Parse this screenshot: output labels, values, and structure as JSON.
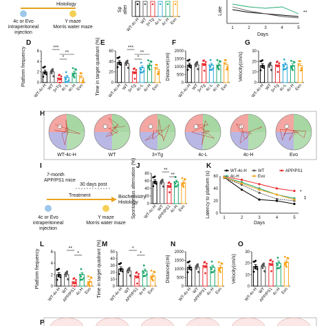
{
  "colors": {
    "wt4ch": "#000000",
    "wt": "#555555",
    "tg": "#e8282b",
    "c4l": "#2da8d8",
    "c4h": "#1fa86e",
    "evo": "#f7a21b",
    "app": "#e8282b",
    "arena_red": "#f3a6a2",
    "arena_green": "#a7d8a3",
    "arena_blue": "#b9b7e4",
    "timeline": "#e8a21b",
    "dot_blue": "#9ec7ea",
    "dot_yellow": "#f6cf55"
  },
  "panel_labels": {
    "D": "D",
    "E": "E",
    "F": "F",
    "G": "G",
    "H": "H",
    "I": "I",
    "J": "J",
    "K": "K",
    "L": "L",
    "M": "M",
    "N": "N",
    "O": "O",
    "P": "P"
  },
  "top": {
    "histology": "Histology",
    "injection_l1": "4c or Evo",
    "injection_l2": "intraperitoneal",
    "injection_l3": "injection",
    "maze": "Y maze",
    "mwm": "Morris water maze",
    "b_ylabel": "Sp",
    "b_ylabel2": "alter",
    "b_groups": [
      "WT-4c-H",
      "WT",
      "3×Tg",
      "4c-L",
      "4c-H",
      "Evo"
    ],
    "c_ylabel": "Late",
    "c_xlabel": "Days",
    "c_days": [
      "1",
      "2",
      "3",
      "4",
      "5"
    ],
    "c_sig": "**"
  },
  "chart_D": {
    "type": "bar",
    "ylabel": "Platform frequency",
    "categories": [
      "WT-4c-H",
      "WT",
      "3×Tg",
      "4c-L",
      "4c-H",
      "Evo"
    ],
    "values": [
      2.0,
      2.0,
      0.5,
      1.0,
      1.8,
      0.9
    ],
    "ylim": [
      0,
      6
    ],
    "yticks": [
      "0",
      "2",
      "4",
      "6"
    ],
    "sig": [
      {
        "from": 1,
        "to": 2,
        "label": "***"
      },
      {
        "from": 2,
        "to": 4,
        "label": "**"
      },
      {
        "from": 2,
        "to": 3,
        "label": "*"
      }
    ]
  },
  "chart_E": {
    "type": "bar",
    "ylabel": "Time in target quadrant (%)",
    "categories": [
      "WT-4c-H",
      "WT",
      "3×Tg",
      "4c-L",
      "4c-H",
      "Evo"
    ],
    "values": [
      38,
      36,
      17,
      28,
      33,
      25
    ],
    "ylim": [
      0,
      60
    ],
    "yticks": [
      "0",
      "20",
      "40",
      "60"
    ],
    "sig": [
      {
        "from": 1,
        "to": 2,
        "label": "***"
      },
      {
        "from": 2,
        "to": 4,
        "label": "**"
      },
      {
        "from": 2,
        "to": 3,
        "label": "*"
      }
    ]
  },
  "chart_F": {
    "type": "bar",
    "ylabel": "Distance(cm)",
    "categories": [
      "WT-4c-H",
      "WT",
      "3×Tg",
      "4c-L",
      "4c-H",
      "Evo"
    ],
    "values": [
      1100,
      1120,
      1080,
      1100,
      1110,
      1130
    ],
    "ylim": [
      0,
      2000
    ],
    "yticks": [
      "0",
      "500",
      "1000",
      "1500",
      "2000"
    ]
  },
  "chart_G": {
    "type": "bar",
    "ylabel": "Velocity(cm/s)",
    "categories": [
      "WT-4c-H",
      "WT",
      "3×Tg",
      "4c-L",
      "4c-H",
      "Evo"
    ],
    "values": [
      16,
      16,
      15,
      17,
      16,
      16
    ],
    "ylim": [
      0,
      30
    ],
    "yticks": [
      "0",
      "10",
      "20",
      "30"
    ]
  },
  "arenas_H": [
    "WT-4c-H",
    "WT",
    "3×Tg",
    "4c-L",
    "4c-H",
    "Evo"
  ],
  "panel_I": {
    "title_l1": "7-month",
    "title_l2": "APP/PS1 mice",
    "post": "30 days post",
    "treatment": "Treatment",
    "bio": "Biochemistry",
    "histology": "Histology",
    "injection_l1": "4c or Evo",
    "injection_l2": "intraperitoneal",
    "injection_l3": "injection",
    "maze": "Y maze",
    "mwm": "Morris water maze"
  },
  "chart_J": {
    "type": "bar",
    "ylabel": "Spontaneous alternation (%)",
    "categories": [
      "WT-4c-H",
      "WT",
      "APP/PS1",
      "4c-H",
      "Evo"
    ],
    "values": [
      58,
      56,
      43,
      57,
      55
    ],
    "ylim": [
      0,
      80
    ],
    "yticks": [
      "0",
      "20",
      "40",
      "60",
      "80"
    ],
    "sig": [
      {
        "from": 1,
        "to": 2,
        "label": "**"
      },
      {
        "from": 2,
        "to": 3,
        "label": "**"
      }
    ]
  },
  "chart_K": {
    "type": "line",
    "ylabel": "Latency to platform (s)",
    "xlabel": "Days",
    "x": [
      "1",
      "2",
      "3",
      "4",
      "5"
    ],
    "ylim": [
      0,
      60
    ],
    "yticks": [
      "0",
      "20",
      "40",
      "60"
    ],
    "series": [
      {
        "name": "WT-4c-H",
        "values": [
          58,
          38,
          22,
          20,
          15
        ]
      },
      {
        "name": "WT",
        "values": [
          57,
          46,
          33,
          23,
          20
        ]
      },
      {
        "name": "APP/PS1",
        "values": [
          59,
          54,
          47,
          40,
          36
        ]
      },
      {
        "name": "4c-H",
        "values": [
          58,
          50,
          40,
          30,
          24
        ]
      },
      {
        "name": "Evo",
        "values": [
          58,
          48,
          38,
          30,
          22
        ]
      }
    ],
    "sig": [
      "*",
      "**"
    ]
  },
  "chart_L": {
    "type": "bar",
    "ylabel": "Platform frequency",
    "categories": [
      "WT-4c-H",
      "WT",
      "APP/PS1",
      "4c-H",
      "Evo"
    ],
    "values": [
      2.0,
      2.0,
      0.4,
      2.0,
      0.8
    ],
    "ylim": [
      0,
      6
    ],
    "yticks": [
      "0",
      "2",
      "4",
      "6"
    ],
    "sig": [
      {
        "from": 1,
        "to": 2,
        "label": "**"
      },
      {
        "from": 2,
        "to": 3,
        "label": "*"
      }
    ]
  },
  "chart_M": {
    "type": "bar",
    "ylabel": "Time in target quadrant (%)",
    "categories": [
      "WT-4c-H",
      "WT",
      "APP/PS1",
      "4c-H",
      "Evo"
    ],
    "values": [
      25,
      22,
      12,
      22,
      15
    ],
    "ylim": [
      0,
      50
    ],
    "yticks": [
      "0",
      "10",
      "20",
      "30",
      "40",
      "50"
    ],
    "sig": [
      {
        "from": 1,
        "to": 2,
        "label": "*"
      },
      {
        "from": 2,
        "to": 3,
        "label": "*"
      }
    ]
  },
  "chart_N": {
    "type": "bar",
    "ylabel": "Distance(cm)",
    "categories": [
      "WT-4c-H",
      "WT",
      "APP/PS1",
      "4c-H",
      "Evo"
    ],
    "values": [
      1100,
      1090,
      1080,
      1100,
      1090
    ],
    "ylim": [
      0,
      2000
    ],
    "yticks": [
      "0",
      "500",
      "1000",
      "1500",
      "2000"
    ]
  },
  "chart_O": {
    "type": "bar",
    "ylabel": "Velocity(cm/s)",
    "categories": [
      "WT-4c-H",
      "WT",
      "APP/PS1",
      "4c-H",
      "Evo"
    ],
    "values": [
      17,
      17,
      18,
      20,
      21
    ],
    "ylim": [
      0,
      30
    ],
    "yticks": [
      "0",
      "10",
      "20",
      "30"
    ]
  }
}
